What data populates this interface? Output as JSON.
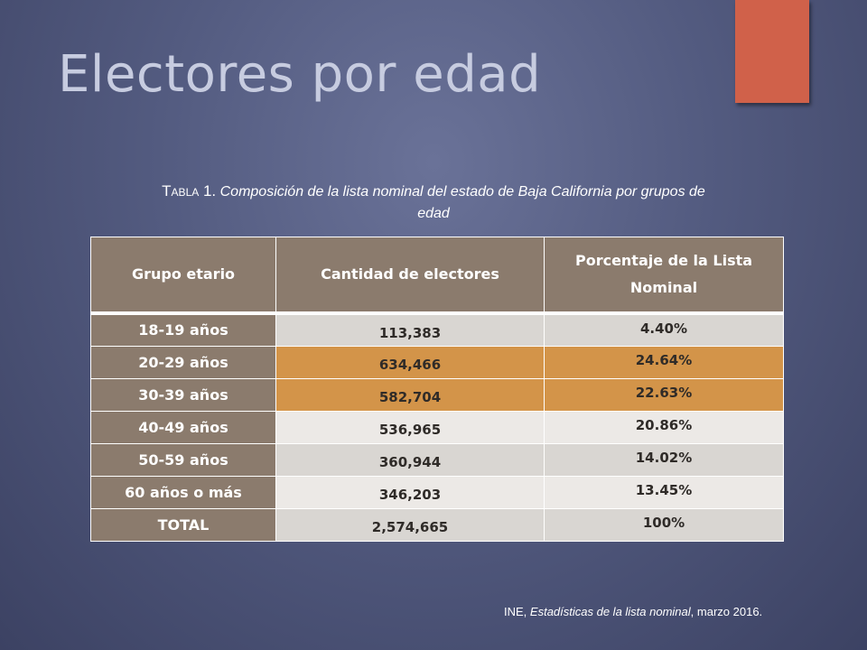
{
  "slide": {
    "title": "Electores por edad"
  },
  "caption": {
    "label": "Tabla 1.",
    "text": "Composición de la lista nominal del estado de Baja California por grupos de edad"
  },
  "table": {
    "headers": [
      "Grupo etario",
      "Cantidad de electores",
      "Porcentaje de la Lista Nominal"
    ],
    "rows": [
      {
        "grupo": "18-19 años",
        "cantidad": "113,383",
        "porcentaje": "4.40%",
        "style": "light"
      },
      {
        "grupo": "20-29 años",
        "cantidad": "634,466",
        "porcentaje": "24.64%",
        "style": "orange"
      },
      {
        "grupo": "30-39 años",
        "cantidad": "582,704",
        "porcentaje": "22.63%",
        "style": "orange"
      },
      {
        "grupo": "40-49 años",
        "cantidad": "536,965",
        "porcentaje": "20.86%",
        "style": "lighter"
      },
      {
        "grupo": "50-59 años",
        "cantidad": "360,944",
        "porcentaje": "14.02%",
        "style": "light"
      },
      {
        "grupo": "60 años o más",
        "cantidad": "346,203",
        "porcentaje": "13.45%",
        "style": "lighter"
      },
      {
        "grupo": "TOTAL",
        "cantidad": "2,574,665",
        "porcentaje": "100%",
        "style": "light"
      }
    ]
  },
  "source": {
    "prefix": "INE, ",
    "italic": "Estadísticas de la lista nominal",
    "suffix": ", marzo 2016."
  },
  "colors": {
    "background": "#535b80",
    "accent": "#d0614a",
    "header_cell": "#8b7b6d",
    "highlight": "#d39449",
    "row_light": "#d9d6d2"
  }
}
